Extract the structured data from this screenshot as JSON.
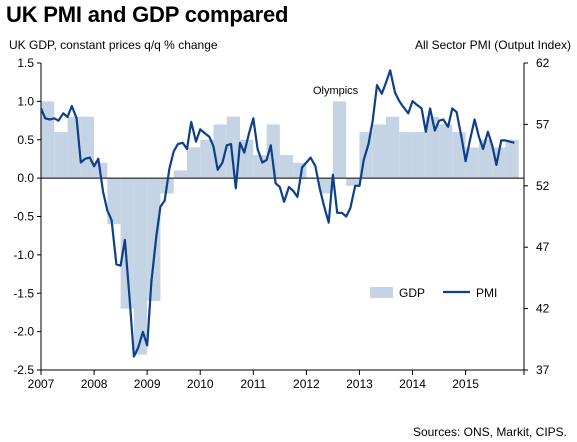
{
  "title": "UK PMI and GDP compared",
  "chart_data": {
    "type": "bar+line",
    "title": "UK PMI and GDP compared",
    "left_axis_label": "UK GDP, constant prices q/q % change",
    "right_axis_label": "All Sector PMI (Output Index)",
    "left_ylim": [
      -2.5,
      1.5
    ],
    "left_ticks": [
      "1.5",
      "1.0",
      "0.5",
      "0.0",
      "-0.5",
      "-1.0",
      "-1.5",
      "-2.0",
      "-2.5"
    ],
    "right_ylim": [
      37,
      62
    ],
    "right_ticks": [
      "62",
      "57",
      "52",
      "47",
      "42",
      "37"
    ],
    "x_ticks": [
      "2007",
      "2008",
      "2009",
      "2010",
      "2011",
      "2012",
      "2013",
      "2014",
      "2015"
    ],
    "x_range": [
      2007.0,
      2016.1
    ],
    "gdp": {
      "name": "GDP",
      "quarters": [
        2007.0,
        2007.25,
        2007.5,
        2007.75,
        2008.0,
        2008.25,
        2008.5,
        2008.75,
        2009.0,
        2009.25,
        2009.5,
        2009.75,
        2010.0,
        2010.25,
        2010.5,
        2010.75,
        2011.0,
        2011.25,
        2011.5,
        2011.75,
        2012.0,
        2012.25,
        2012.5,
        2012.75,
        2013.0,
        2013.25,
        2013.5,
        2013.75,
        2014.0,
        2014.25,
        2014.5,
        2014.75,
        2015.0,
        2015.25,
        2015.5,
        2015.75
      ],
      "values": [
        1.0,
        0.6,
        0.8,
        0.8,
        0.2,
        -0.6,
        -1.7,
        -2.3,
        -1.6,
        -0.2,
        0.1,
        0.4,
        0.5,
        0.7,
        0.8,
        0.5,
        0.3,
        0.7,
        0.3,
        0.2,
        0.0,
        -0.2,
        1.0,
        -0.1,
        0.6,
        0.7,
        0.8,
        0.6,
        0.6,
        0.8,
        0.7,
        0.6,
        0.4,
        0.5,
        0.4,
        0.5
      ]
    },
    "pmi": {
      "name": "PMI",
      "x": [
        2007.0,
        2007.08,
        2007.17,
        2007.25,
        2007.33,
        2007.42,
        2007.5,
        2007.58,
        2007.67,
        2007.75,
        2007.83,
        2007.92,
        2008.0,
        2008.08,
        2008.17,
        2008.25,
        2008.33,
        2008.42,
        2008.5,
        2008.58,
        2008.67,
        2008.75,
        2008.83,
        2008.92,
        2009.0,
        2009.08,
        2009.17,
        2009.25,
        2009.33,
        2009.42,
        2009.5,
        2009.58,
        2009.67,
        2009.75,
        2009.83,
        2009.92,
        2010.0,
        2010.08,
        2010.17,
        2010.25,
        2010.33,
        2010.42,
        2010.5,
        2010.58,
        2010.67,
        2010.75,
        2010.83,
        2010.92,
        2011.0,
        2011.08,
        2011.17,
        2011.25,
        2011.33,
        2011.42,
        2011.5,
        2011.58,
        2011.67,
        2011.75,
        2011.83,
        2011.92,
        2012.0,
        2012.08,
        2012.17,
        2012.25,
        2012.33,
        2012.42,
        2012.5,
        2012.58,
        2012.67,
        2012.75,
        2012.83,
        2012.92,
        2013.0,
        2013.08,
        2013.17,
        2013.25,
        2013.33,
        2013.42,
        2013.5,
        2013.58,
        2013.67,
        2013.75,
        2013.83,
        2013.92,
        2014.0,
        2014.08,
        2014.17,
        2014.25,
        2014.33,
        2014.42,
        2014.5,
        2014.58,
        2014.67,
        2014.75,
        2014.83,
        2014.92,
        2015.0,
        2015.08,
        2015.17,
        2015.25,
        2015.33,
        2015.42,
        2015.5,
        2015.58,
        2015.67,
        2015.75,
        2015.83,
        2015.92
      ],
      "values": [
        58.3,
        57.5,
        57.4,
        57.5,
        57.3,
        57.9,
        57.6,
        58.5,
        57.5,
        53.9,
        54.2,
        54.3,
        53.6,
        54.2,
        51.5,
        50.0,
        49.2,
        45.6,
        45.5,
        47.6,
        42.8,
        38.1,
        38.8,
        40.1,
        39.0,
        44.2,
        47.8,
        50.3,
        50.8,
        53.4,
        54.8,
        55.4,
        55.5,
        55.0,
        57.2,
        55.6,
        56.6,
        56.3,
        56.0,
        55.2,
        53.3,
        53.9,
        55.3,
        55.4,
        51.8,
        55.5,
        54.7,
        56.3,
        57.5,
        55.0,
        53.9,
        54.1,
        55.3,
        52.2,
        51.9,
        50.7,
        51.9,
        51.6,
        51.1,
        53.5,
        53.9,
        54.3,
        53.6,
        51.8,
        50.4,
        49.0,
        52.9,
        49.8,
        49.8,
        49.5,
        50.2,
        52.0,
        52.0,
        54.1,
        55.4,
        57.3,
        60.2,
        59.5,
        60.4,
        61.4,
        59.6,
        58.9,
        58.4,
        57.9,
        58.9,
        58.6,
        58.3,
        56.4,
        58.3,
        56.5,
        57.3,
        57.4,
        56.8,
        58.3,
        58.0,
        56.0,
        54.0,
        55.7,
        57.4,
        56.0,
        55.0,
        56.4,
        55.3,
        53.7,
        55.7,
        55.7,
        55.6,
        55.5
      ]
    },
    "annotation": "Olympics",
    "legend": [
      "GDP",
      "PMI"
    ],
    "legend_position": "lower-right",
    "colors": {
      "gdp": "#c5d4e4",
      "pmi": "#0e3f8a"
    },
    "grid": false
  },
  "source": "Sources: ONS, Markit, CIPS."
}
